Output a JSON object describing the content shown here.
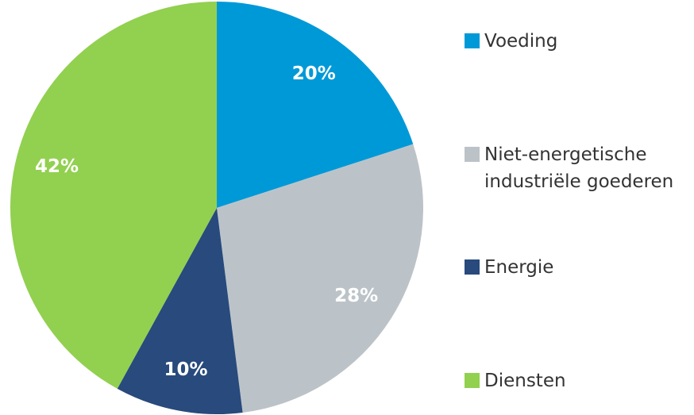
{
  "chart_data": {
    "type": "pie",
    "categories": [
      "Voeding",
      "Niet-energetische industriële goederen",
      "Energie",
      "Diensten"
    ],
    "values": [
      20,
      28,
      10,
      42
    ],
    "value_labels": [
      "20%",
      "28%",
      "10%",
      "42%"
    ],
    "colors": [
      "#0099d8",
      "#bcc3c8",
      "#284a7c",
      "#92d050"
    ]
  }
}
